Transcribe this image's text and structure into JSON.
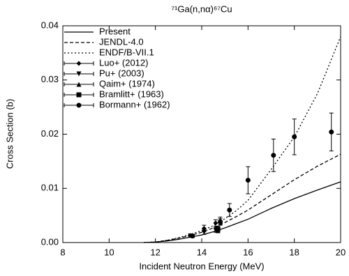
{
  "chart_data": {
    "type": "line",
    "title": "⁷¹Ga(n,nα)⁶⁷Cu",
    "x_label": "Incident Neutron Energy (MeV)",
    "y_label": "Cross Section (b)",
    "xlim": [
      8,
      20
    ],
    "ylim": [
      0,
      0.04
    ],
    "xticks": [
      8,
      10,
      12,
      14,
      16,
      18,
      20
    ],
    "yticks": [
      {
        "value": 0,
        "label": "0.00"
      },
      {
        "value": 0.01,
        "label": "0.01"
      },
      {
        "value": 0.02,
        "label": "0.02"
      },
      {
        "value": 0.03,
        "label": "0.03"
      },
      {
        "value": 0.04,
        "label": "0.04"
      }
    ],
    "legend": "upper-left",
    "series": [
      {
        "name": "Present",
        "color": "#000",
        "style": "solid",
        "x": [
          11.5,
          12,
          12.5,
          13,
          13.5,
          14,
          14.5,
          15,
          15.5,
          16,
          17,
          18,
          19,
          20
        ],
        "values": [
          0,
          0.0001,
          0.0003,
          0.0006,
          0.001,
          0.0014,
          0.002,
          0.0027,
          0.0035,
          0.0043,
          0.0063,
          0.0081,
          0.0097,
          0.0112
        ]
      },
      {
        "name": "JENDL-4.0",
        "color": "#000",
        "style": "dashed",
        "x": [
          11.5,
          12,
          12.5,
          13,
          13.5,
          14,
          14.5,
          15,
          15.5,
          16,
          17,
          18,
          19,
          20
        ],
        "values": [
          0,
          0.0001,
          0.0004,
          0.0008,
          0.0013,
          0.0019,
          0.0027,
          0.0037,
          0.0048,
          0.006,
          0.0088,
          0.0116,
          0.0141,
          0.0163
        ]
      },
      {
        "name": "ENDF/B-VII.1",
        "color": "#000",
        "style": "dotted",
        "x": [
          11.5,
          12,
          12.5,
          13,
          13.5,
          14,
          14.5,
          15,
          15.5,
          16,
          17,
          18,
          19,
          20
        ],
        "values": [
          0,
          0.0001,
          0.0004,
          0.0009,
          0.0015,
          0.0022,
          0.0031,
          0.0044,
          0.0059,
          0.0078,
          0.0135,
          0.0195,
          0.0275,
          0.038
        ]
      },
      {
        "name": "Luo+ (2012)",
        "color": "#000",
        "marker": "diamond",
        "x": [
          13.5,
          14.1,
          14.6,
          14.8
        ],
        "values": [
          0.0013,
          0.0026,
          0.0036,
          0.004
        ],
        "errors": [
          0.0003,
          0.0006,
          0.0006,
          0.0007
        ]
      },
      {
        "name": "Pu+ (2003)",
        "color": "#000",
        "marker": "triangle-down",
        "x": [
          14.1,
          14.6
        ],
        "values": [
          0.0019,
          0.0023
        ],
        "errors": [
          0.0004,
          0.0004
        ]
      },
      {
        "name": "Qaim+ (1974)",
        "color": "#000",
        "marker": "triangle-up",
        "x": [
          14.7
        ],
        "values": [
          0.0022
        ],
        "errors": [
          0.0004
        ]
      },
      {
        "name": "Bramlitt+ (1963)",
        "color": "#000",
        "marker": "square",
        "x": [
          14.7
        ],
        "values": [
          0.0025
        ],
        "errors": [
          0.0005
        ]
      },
      {
        "name": "Bormann+ (1962)",
        "color": "#000",
        "marker": "circle",
        "x": [
          13.6,
          14.8,
          15.2,
          16,
          17.1,
          18,
          19.6
        ],
        "values": [
          0.0012,
          0.0038,
          0.006,
          0.0115,
          0.0161,
          0.0195,
          0.0204
        ],
        "errors": [
          0.0003,
          0.0006,
          0.0012,
          0.0025,
          0.003,
          0.0033,
          0.0035
        ]
      }
    ]
  }
}
